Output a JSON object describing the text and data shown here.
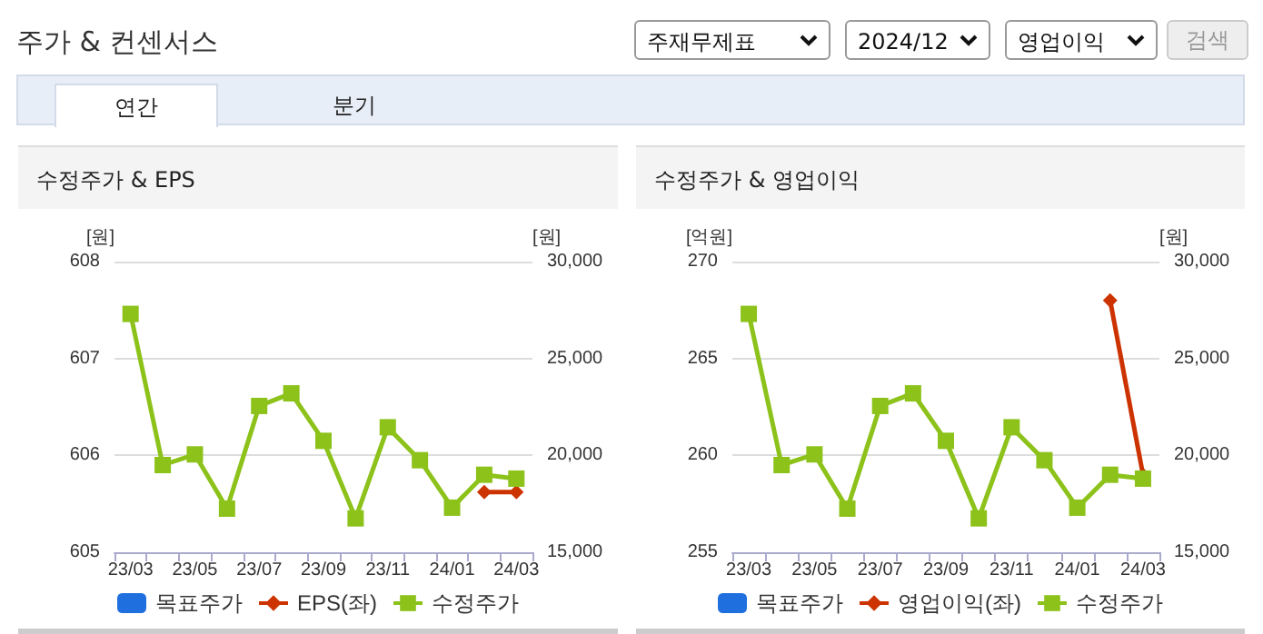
{
  "chart_data": [
    {
      "type": "other",
      "title": "주가 & 컨센서스",
      "annotations": [
        "주재무제표",
        "2024/12",
        "영업이익",
        "검색",
        "연간",
        "분기"
      ]
    },
    {
      "type": "line",
      "title": "수정주가 & EPS",
      "ylabel": "[원]",
      "y2label": "[원]",
      "categories": [
        "23/03",
        null,
        "23/05",
        null,
        "23/07",
        null,
        "23/09",
        null,
        "23/11",
        null,
        "24/01",
        null,
        "24/03"
      ],
      "series": [
        {
          "name": "목표주가",
          "type": "bar",
          "color": "#1f6fdf",
          "values": [
            null,
            null,
            null,
            null,
            null,
            null,
            null,
            null,
            null,
            null,
            null,
            null,
            null
          ]
        },
        {
          "name": "EPS(좌)",
          "type": "line",
          "axis": "y",
          "marker": "diamond",
          "color": "#cc3300",
          "values": [
            null,
            null,
            null,
            null,
            null,
            null,
            null,
            null,
            null,
            null,
            null,
            605.62,
            605.62
          ]
        },
        {
          "name": "수정주가",
          "type": "line",
          "axis": "y2",
          "marker": "square",
          "color": "#8cc21a",
          "values": [
            27300,
            19500,
            20050,
            17250,
            22550,
            23200,
            20750,
            16750,
            21450,
            19750,
            17300,
            19000,
            18800
          ]
        }
      ],
      "ylim": [
        605,
        608
      ],
      "yticks": [
        605,
        606,
        607,
        608
      ],
      "y2lim": [
        15000,
        30000
      ],
      "y2ticks": [
        {
          "value": 15000,
          "label": "15,000"
        },
        {
          "value": 20000,
          "label": "20,000"
        },
        {
          "value": 25000,
          "label": "25,000"
        },
        {
          "value": 30000,
          "label": "30,000"
        }
      ],
      "grid": "y",
      "legend": "bottom"
    },
    {
      "type": "line",
      "title": "수정주가 & 영업이익",
      "ylabel": "[억원]",
      "y2label": "[원]",
      "categories": [
        "23/03",
        null,
        "23/05",
        null,
        "23/07",
        null,
        "23/09",
        null,
        "23/11",
        null,
        "24/01",
        null,
        "24/03"
      ],
      "series": [
        {
          "name": "목표주가",
          "type": "bar",
          "color": "#1f6fdf",
          "values": [
            null,
            null,
            null,
            null,
            null,
            null,
            null,
            null,
            null,
            null,
            null,
            null,
            null
          ]
        },
        {
          "name": "영업이익(좌)",
          "type": "line",
          "axis": "y",
          "marker": "diamond",
          "color": "#cc3300",
          "values": [
            null,
            null,
            null,
            null,
            null,
            null,
            null,
            null,
            null,
            null,
            null,
            268,
            259
          ]
        },
        {
          "name": "수정주가",
          "type": "line",
          "axis": "y2",
          "marker": "square",
          "color": "#8cc21a",
          "values": [
            27300,
            19500,
            20050,
            17250,
            22550,
            23200,
            20750,
            16750,
            21450,
            19750,
            17300,
            19000,
            18800
          ]
        }
      ],
      "ylim": [
        255,
        270
      ],
      "yticks": [
        255,
        260,
        265,
        270
      ],
      "y2lim": [
        15000,
        30000
      ],
      "y2ticks": [
        {
          "value": 15000,
          "label": "15,000"
        },
        {
          "value": 20000,
          "label": "20,000"
        },
        {
          "value": 25000,
          "label": "25,000"
        },
        {
          "value": 30000,
          "label": "30,000"
        }
      ],
      "grid": "y",
      "legend": "bottom"
    }
  ]
}
